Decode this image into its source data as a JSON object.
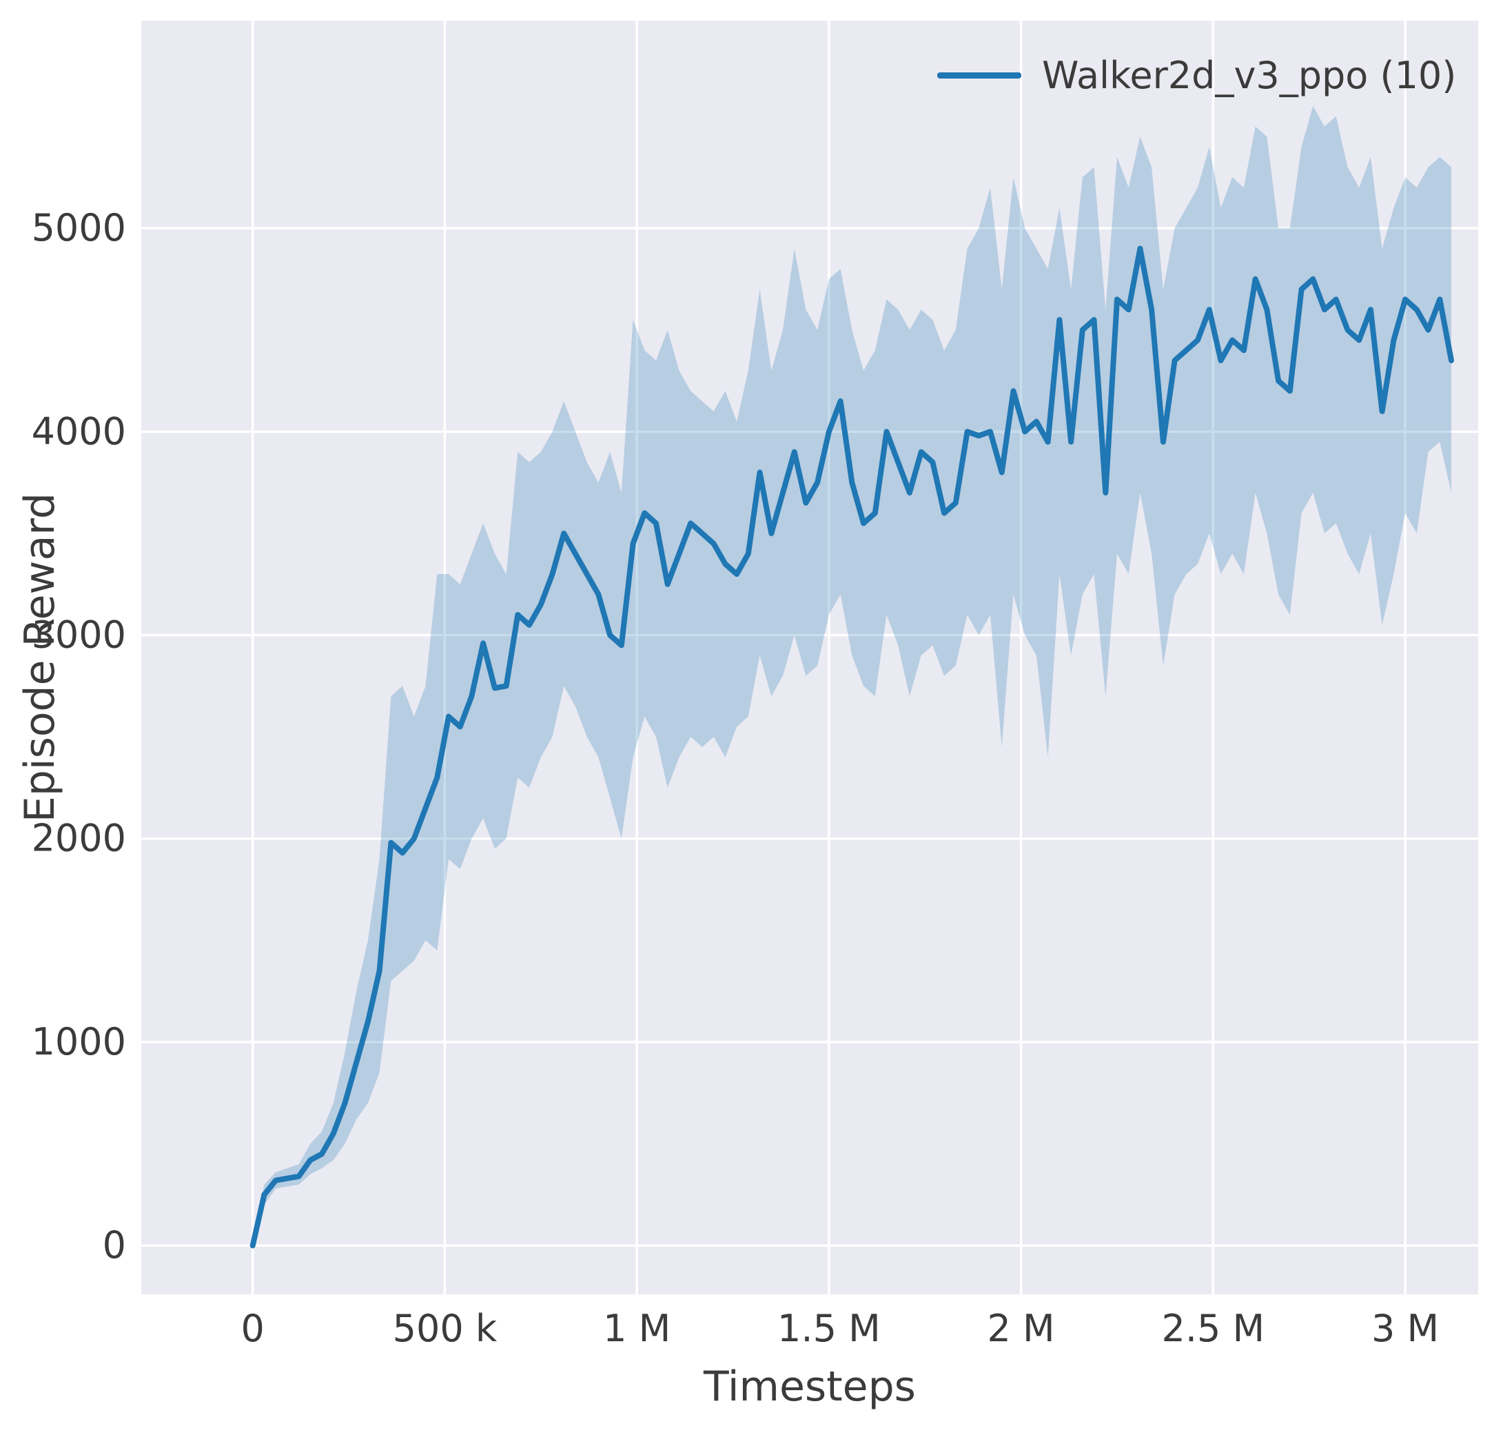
{
  "figure": {
    "background": "#ffffff",
    "axes_background": "#eaeaf2",
    "grid_color": "#ffffff",
    "text_color": "#3b3b3b"
  },
  "chart_data": {
    "type": "line",
    "title": "",
    "xlabel": "Timesteps",
    "ylabel": "Episode Reward",
    "grid": true,
    "legend_position": "upper right",
    "xlim": [
      -290000,
      3190000
    ],
    "ylim": [
      -240,
      6020
    ],
    "x_ticks": {
      "values": [
        0,
        500000,
        1000000,
        1500000,
        2000000,
        2500000,
        3000000
      ],
      "labels": [
        "0",
        "500 k",
        "1 M",
        "1.5 M",
        "2 M",
        "2.5 M",
        "3 M"
      ]
    },
    "y_ticks": {
      "values": [
        0,
        1000,
        2000,
        3000,
        4000,
        5000
      ],
      "labels": [
        "0",
        "1000",
        "2000",
        "3000",
        "4000",
        "5000"
      ]
    },
    "series": [
      {
        "name": "Walker2d_v3_ppo (10)",
        "color": "#1f77b4",
        "band_opacity": 0.25,
        "line_width": 8,
        "x": [
          0,
          30000,
          60000,
          90000,
          120000,
          150000,
          180000,
          210000,
          240000,
          270000,
          300000,
          330000,
          360000,
          390000,
          420000,
          450000,
          480000,
          510000,
          540000,
          570000,
          600000,
          630000,
          660000,
          690000,
          720000,
          750000,
          780000,
          810000,
          840000,
          870000,
          900000,
          930000,
          960000,
          990000,
          1020000,
          1050000,
          1080000,
          1110000,
          1140000,
          1170000,
          1200000,
          1230000,
          1260000,
          1290000,
          1320000,
          1350000,
          1380000,
          1410000,
          1440000,
          1470000,
          1500000,
          1530000,
          1560000,
          1590000,
          1620000,
          1650000,
          1680000,
          1710000,
          1740000,
          1770000,
          1800000,
          1830000,
          1860000,
          1890000,
          1920000,
          1950000,
          1980000,
          2010000,
          2040000,
          2070000,
          2100000,
          2130000,
          2160000,
          2190000,
          2220000,
          2250000,
          2280000,
          2310000,
          2340000,
          2370000,
          2400000,
          2430000,
          2460000,
          2490000,
          2520000,
          2550000,
          2580000,
          2610000,
          2640000,
          2670000,
          2700000,
          2730000,
          2760000,
          2790000,
          2820000,
          2850000,
          2880000,
          2910000,
          2940000,
          2970000,
          3000000,
          3030000,
          3060000,
          3090000,
          3120000
        ],
        "mean": [
          0,
          250,
          320,
          330,
          340,
          420,
          450,
          550,
          700,
          900,
          1100,
          1350,
          1980,
          1930,
          2000,
          2150,
          2300,
          2600,
          2550,
          2700,
          2960,
          2740,
          2750,
          3100,
          3050,
          3150,
          3300,
          3500,
          3400,
          3300,
          3200,
          3000,
          2950,
          3450,
          3600,
          3550,
          3250,
          3400,
          3550,
          3500,
          3450,
          3350,
          3300,
          3400,
          3800,
          3500,
          3700,
          3900,
          3650,
          3750,
          4000,
          4150,
          3750,
          3550,
          3600,
          4000,
          3850,
          3700,
          3900,
          3850,
          3600,
          3650,
          4000,
          3980,
          4000,
          3800,
          4200,
          4000,
          4050,
          3950,
          4550,
          3950,
          4500,
          4550,
          3700,
          4650,
          4600,
          4900,
          4600,
          3950,
          4350,
          4400,
          4450,
          4600,
          4350,
          4450,
          4400,
          4750,
          4600,
          4250,
          4200,
          4700,
          4750,
          4600,
          4650,
          4500,
          4450,
          4600,
          4100,
          4450,
          4650,
          4600,
          4500,
          4650,
          4350
        ],
        "band_low": [
          0,
          200,
          280,
          290,
          300,
          350,
          380,
          420,
          500,
          620,
          700,
          850,
          1300,
          1350,
          1400,
          1500,
          1450,
          1900,
          1850,
          2000,
          2100,
          1950,
          2000,
          2300,
          2250,
          2400,
          2500,
          2750,
          2650,
          2500,
          2400,
          2200,
          2000,
          2400,
          2600,
          2500,
          2250,
          2400,
          2500,
          2450,
          2500,
          2400,
          2550,
          2600,
          2900,
          2700,
          2800,
          3000,
          2800,
          2850,
          3100,
          3200,
          2900,
          2750,
          2700,
          3100,
          2950,
          2700,
          2900,
          2950,
          2800,
          2850,
          3100,
          3000,
          3100,
          2450,
          3200,
          3000,
          2900,
          2400,
          3300,
          2900,
          3200,
          3300,
          2700,
          3400,
          3300,
          3700,
          3400,
          2850,
          3200,
          3300,
          3350,
          3500,
          3300,
          3400,
          3300,
          3700,
          3500,
          3200,
          3100,
          3600,
          3700,
          3500,
          3550,
          3400,
          3300,
          3500,
          3050,
          3300,
          3600,
          3500,
          3900,
          3950,
          3700
        ],
        "band_high": [
          0,
          300,
          360,
          380,
          400,
          500,
          560,
          700,
          950,
          1250,
          1500,
          1900,
          2700,
          2750,
          2600,
          2750,
          3300,
          3300,
          3250,
          3400,
          3550,
          3400,
          3300,
          3900,
          3850,
          3900,
          4000,
          4150,
          4000,
          3850,
          3750,
          3900,
          3700,
          4550,
          4400,
          4350,
          4500,
          4300,
          4200,
          4150,
          4100,
          4200,
          4050,
          4300,
          4700,
          4300,
          4500,
          4900,
          4600,
          4500,
          4750,
          4800,
          4500,
          4300,
          4400,
          4650,
          4600,
          4500,
          4600,
          4550,
          4400,
          4500,
          4900,
          5000,
          5200,
          4700,
          5250,
          5000,
          4900,
          4800,
          5100,
          4700,
          5250,
          5300,
          4600,
          5350,
          5200,
          5450,
          5300,
          4700,
          5000,
          5100,
          5200,
          5400,
          5100,
          5250,
          5200,
          5500,
          5450,
          5000,
          5000,
          5400,
          5600,
          5500,
          5550,
          5300,
          5200,
          5350,
          4900,
          5100,
          5250,
          5200,
          5300,
          5350,
          5300
        ]
      }
    ]
  }
}
